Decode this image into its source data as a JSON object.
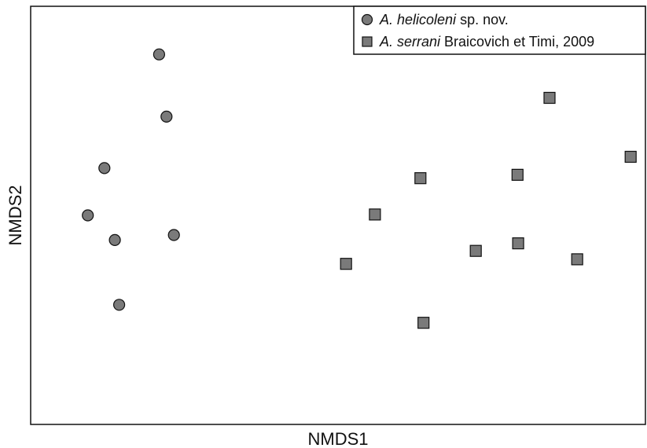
{
  "chart_data": {
    "type": "scatter",
    "xlabel": "NMDS1",
    "ylabel": "NMDS2",
    "xlim": [
      0,
      100
    ],
    "ylim": [
      0,
      100
    ],
    "grid": false,
    "ticks": false,
    "legend_position": "top-right",
    "series": [
      {
        "name": "A. helicoleni sp. nov.",
        "name_italic": "A. helicoleni",
        "name_rest": " sp. nov.",
        "marker": "circle",
        "color": "#7a7a7a",
        "points": [
          {
            "x": 20.9,
            "y": 88.5
          },
          {
            "x": 22.1,
            "y": 73.6
          },
          {
            "x": 12.0,
            "y": 61.3
          },
          {
            "x": 9.3,
            "y": 50.0
          },
          {
            "x": 13.7,
            "y": 44.1
          },
          {
            "x": 23.3,
            "y": 45.3
          },
          {
            "x": 14.4,
            "y": 28.6
          }
        ]
      },
      {
        "name": "A. serrani Braicovich et Timi, 2009",
        "name_italic": "A. serrani",
        "name_rest": " Braicovich et Timi, 2009",
        "marker": "square",
        "color": "#7a7a7a",
        "points": [
          {
            "x": 84.4,
            "y": 78.1
          },
          {
            "x": 97.6,
            "y": 64.0
          },
          {
            "x": 79.2,
            "y": 59.7
          },
          {
            "x": 63.4,
            "y": 58.9
          },
          {
            "x": 56.0,
            "y": 50.2
          },
          {
            "x": 51.3,
            "y": 38.4
          },
          {
            "x": 72.4,
            "y": 41.5
          },
          {
            "x": 79.3,
            "y": 43.3
          },
          {
            "x": 88.9,
            "y": 39.5
          },
          {
            "x": 63.9,
            "y": 24.3
          }
        ]
      }
    ]
  }
}
